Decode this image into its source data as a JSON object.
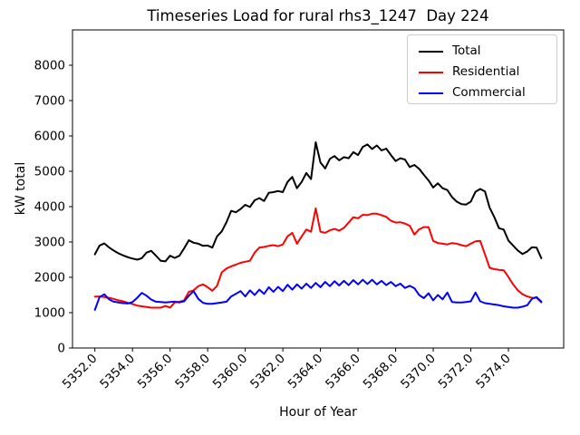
{
  "chart_data": {
    "type": "line",
    "title": "Timeseries Load for rural rhs3_1247  Day 224",
    "xlabel": "Hour of Year",
    "ylabel": "kW total",
    "xlim": [
      5350.81,
      5376.94
    ],
    "ylim": [
      0,
      9000
    ],
    "grid": false,
    "legend_position": "upper right",
    "xticks": {
      "values": [
        5352,
        5354,
        5356,
        5358,
        5360,
        5362,
        5364,
        5366,
        5368,
        5370,
        5372,
        5374
      ],
      "labels": [
        "5352.0",
        "5354.0",
        "5356.0",
        "5358.0",
        "5360.0",
        "5362.0",
        "5364.0",
        "5366.0",
        "5368.0",
        "5370.0",
        "5372.0",
        "5374.0"
      ]
    },
    "yticks": {
      "values": [
        0,
        1000,
        2000,
        3000,
        4000,
        5000,
        6000,
        7000,
        8000
      ],
      "labels": [
        "0",
        "1000",
        "2000",
        "3000",
        "4000",
        "5000",
        "6000",
        "7000",
        "8000"
      ]
    },
    "x": [
      5352,
      5352.25,
      5352.5,
      5352.75,
      5353,
      5353.25,
      5353.5,
      5353.75,
      5354,
      5354.25,
      5354.5,
      5354.75,
      5355,
      5355.25,
      5355.5,
      5355.75,
      5356,
      5356.25,
      5356.5,
      5356.75,
      5357,
      5357.25,
      5357.5,
      5357.75,
      5358,
      5358.25,
      5358.5,
      5358.75,
      5359,
      5359.25,
      5359.5,
      5359.75,
      5360,
      5360.25,
      5360.5,
      5360.75,
      5361,
      5361.25,
      5361.5,
      5361.75,
      5362,
      5362.25,
      5362.5,
      5362.75,
      5363,
      5363.25,
      5363.5,
      5363.75,
      5364,
      5364.25,
      5364.5,
      5364.75,
      5365,
      5365.25,
      5365.5,
      5365.75,
      5366,
      5366.25,
      5366.5,
      5366.75,
      5367,
      5367.25,
      5367.5,
      5367.75,
      5368,
      5368.25,
      5368.5,
      5368.75,
      5369,
      5369.25,
      5369.5,
      5369.75,
      5370,
      5370.25,
      5370.5,
      5370.75,
      5371,
      5371.25,
      5371.5,
      5371.75,
      5372,
      5372.25,
      5372.5,
      5372.75,
      5373,
      5373.25,
      5373.5,
      5373.75,
      5374,
      5374.25,
      5374.5,
      5374.75,
      5375,
      5375.25,
      5375.5,
      5375.75
    ],
    "series": [
      {
        "name": "Total",
        "color": "#000000",
        "values": [
          2650,
          2900,
          2960,
          2850,
          2760,
          2680,
          2620,
          2570,
          2530,
          2500,
          2540,
          2700,
          2750,
          2610,
          2470,
          2450,
          2610,
          2550,
          2610,
          2820,
          3050,
          2980,
          2950,
          2890,
          2900,
          2840,
          3160,
          3300,
          3560,
          3880,
          3840,
          3930,
          4050,
          3990,
          4180,
          4240,
          4160,
          4390,
          4410,
          4440,
          4410,
          4700,
          4840,
          4520,
          4700,
          4950,
          4780,
          5820,
          5250,
          5080,
          5350,
          5430,
          5310,
          5400,
          5370,
          5540,
          5460,
          5690,
          5760,
          5630,
          5730,
          5590,
          5640,
          5460,
          5290,
          5370,
          5330,
          5120,
          5180,
          5070,
          4900,
          4740,
          4540,
          4660,
          4520,
          4470,
          4270,
          4140,
          4070,
          4060,
          4140,
          4420,
          4500,
          4430,
          3970,
          3700,
          3390,
          3350,
          3040,
          2900,
          2760,
          2660,
          2730,
          2850,
          2840,
          2540
        ]
      },
      {
        "name": "Residential",
        "color": "#ff0000",
        "values": [
          1450,
          1460,
          1440,
          1420,
          1390,
          1350,
          1320,
          1280,
          1240,
          1200,
          1180,
          1160,
          1140,
          1140,
          1140,
          1190,
          1140,
          1290,
          1310,
          1350,
          1590,
          1630,
          1750,
          1800,
          1720,
          1620,
          1760,
          2140,
          2250,
          2310,
          2360,
          2410,
          2440,
          2470,
          2700,
          2840,
          2860,
          2890,
          2910,
          2880,
          2930,
          3160,
          3260,
          2950,
          3160,
          3350,
          3290,
          3950,
          3290,
          3260,
          3330,
          3370,
          3320,
          3400,
          3550,
          3700,
          3670,
          3770,
          3760,
          3800,
          3800,
          3760,
          3710,
          3600,
          3550,
          3560,
          3520,
          3460,
          3210,
          3360,
          3420,
          3420,
          3030,
          2970,
          2950,
          2930,
          2970,
          2950,
          2910,
          2880,
          2950,
          3020,
          3030,
          2650,
          2270,
          2230,
          2210,
          2200,
          2010,
          1800,
          1630,
          1520,
          1460,
          1420,
          1420,
          1290
        ]
      },
      {
        "name": "Commercial",
        "color": "#0000ff",
        "values": [
          1080,
          1440,
          1520,
          1380,
          1310,
          1290,
          1270,
          1260,
          1300,
          1420,
          1560,
          1480,
          1370,
          1310,
          1300,
          1290,
          1300,
          1310,
          1290,
          1320,
          1480,
          1610,
          1390,
          1280,
          1250,
          1250,
          1270,
          1290,
          1310,
          1460,
          1530,
          1610,
          1460,
          1630,
          1500,
          1650,
          1530,
          1720,
          1590,
          1730,
          1610,
          1790,
          1650,
          1800,
          1680,
          1820,
          1700,
          1840,
          1720,
          1870,
          1750,
          1890,
          1770,
          1900,
          1780,
          1920,
          1800,
          1930,
          1810,
          1930,
          1800,
          1900,
          1780,
          1870,
          1750,
          1820,
          1700,
          1760,
          1690,
          1500,
          1410,
          1550,
          1350,
          1500,
          1380,
          1570,
          1300,
          1290,
          1290,
          1300,
          1320,
          1570,
          1320,
          1270,
          1250,
          1230,
          1210,
          1180,
          1160,
          1140,
          1140,
          1170,
          1210,
          1390,
          1440,
          1310
        ]
      }
    ]
  }
}
